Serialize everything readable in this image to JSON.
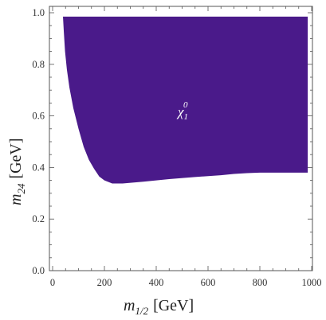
{
  "chart_data": {
    "type": "area",
    "xlabel_main": "m",
    "xlabel_sub": "1/2",
    "xlabel_unit": "[GeV]",
    "ylabel_main": "m",
    "ylabel_sub": "24",
    "ylabel_unit": "[GeV]",
    "xlim": [
      0,
      1000
    ],
    "ylim": [
      0,
      1.0
    ],
    "xticks": [
      0,
      200,
      400,
      600,
      800,
      1000
    ],
    "xtick_labels": [
      "0",
      "200",
      "400",
      "600",
      "800",
      "1000"
    ],
    "yticks": [
      0.0,
      0.2,
      0.4,
      0.6,
      0.8,
      1.0
    ],
    "ytick_labels": [
      "0.0",
      "0.2",
      "0.4",
      "0.6",
      "0.8",
      "1.0"
    ],
    "grid": false,
    "region": {
      "fill_color": "#4a1a8a",
      "label_main": "χ",
      "label_sub": "1",
      "label_sup": "0",
      "label_at": [
        520,
        0.63
      ],
      "boundary": [
        [
          40,
          0.985
        ],
        [
          43,
          0.93
        ],
        [
          48,
          0.85
        ],
        [
          55,
          0.78
        ],
        [
          65,
          0.71
        ],
        [
          80,
          0.63
        ],
        [
          100,
          0.55
        ],
        [
          120,
          0.48
        ],
        [
          140,
          0.43
        ],
        [
          160,
          0.395
        ],
        [
          180,
          0.365
        ],
        [
          200,
          0.35
        ],
        [
          230,
          0.338
        ],
        [
          270,
          0.338
        ],
        [
          350,
          0.345
        ],
        [
          450,
          0.355
        ],
        [
          550,
          0.363
        ],
        [
          650,
          0.37
        ],
        [
          700,
          0.375
        ],
        [
          750,
          0.378
        ],
        [
          800,
          0.38
        ],
        [
          985,
          0.38
        ],
        [
          985,
          0.985
        ]
      ]
    }
  }
}
